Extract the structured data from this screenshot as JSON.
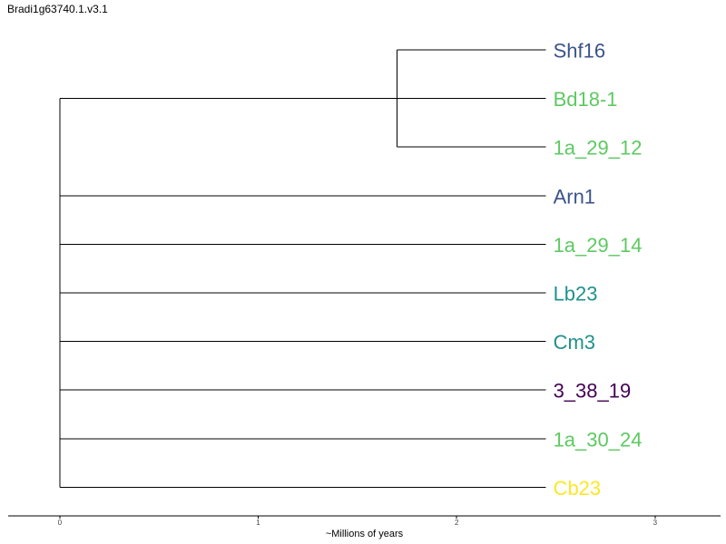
{
  "title": "Bradi1g63740.1.v3.1",
  "tree": {
    "axis_title": "~Millions of years",
    "x_ticks": [
      0,
      1,
      2,
      3
    ],
    "x_range": [
      -0.26,
      3.33
    ],
    "tip_x": 2.45,
    "inner_node_x": 1.7,
    "clade": [
      "Shf16",
      "Bd18-1",
      "1a_29_12"
    ],
    "tips": [
      {
        "label": "Shf16",
        "color": "#3b528b"
      },
      {
        "label": "Bd18-1",
        "color": "#5ec962"
      },
      {
        "label": "1a_29_12",
        "color": "#5ec962"
      },
      {
        "label": "Arn1",
        "color": "#3b528b"
      },
      {
        "label": "1a_29_14",
        "color": "#5ec962"
      },
      {
        "label": "Lb23",
        "color": "#21918c"
      },
      {
        "label": "Cm3",
        "color": "#21918c"
      },
      {
        "label": "3_38_19",
        "color": "#440154"
      },
      {
        "label": "1a_30_24",
        "color": "#5ec962"
      },
      {
        "label": "Cb23",
        "color": "#fde725"
      }
    ]
  }
}
